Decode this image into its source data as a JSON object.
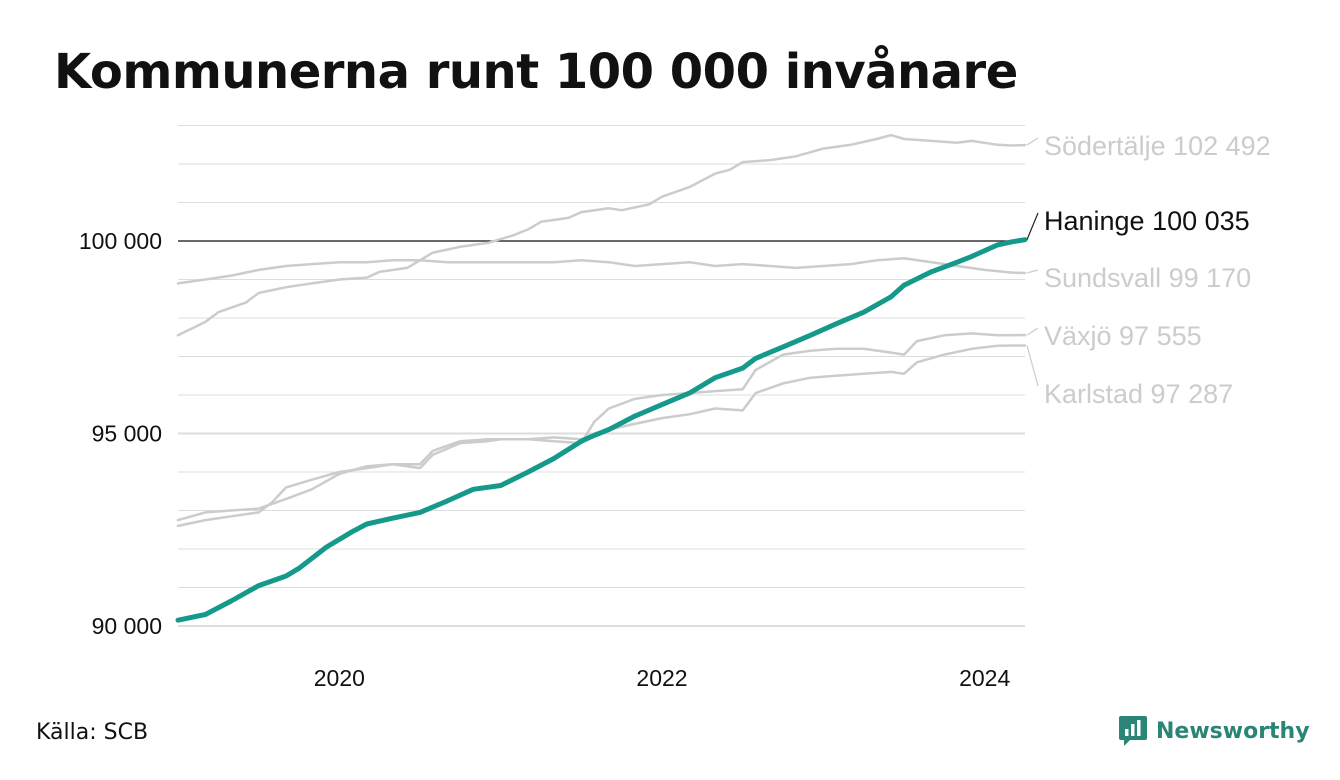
{
  "title": "Kommunerna runt 100 000 invånare",
  "source": "Källa: SCB",
  "brand": {
    "name": "Newsworthy",
    "icon": "newsworthy-logo-icon"
  },
  "colors": {
    "highlight": "#15998a",
    "context": "#cccccc",
    "reference": "#222222",
    "grid": "#dddddd",
    "brand": "#2a8577"
  },
  "chart_data": {
    "type": "line",
    "title": "Kommunerna runt 100 000 invånare",
    "xlabel": "",
    "ylabel": "",
    "xlim": [
      2019.0,
      2024.25
    ],
    "ylim": [
      89500,
      103000
    ],
    "grid": true,
    "legend": "direct labels at line ends (right)",
    "x_ticks": [
      2020,
      2022,
      2024
    ],
    "x_tick_labels": [
      "2020",
      "2022",
      "2024"
    ],
    "y_ticks": [
      90000,
      95000,
      100000
    ],
    "y_tick_labels": [
      "90 000",
      "95 000",
      "100 000"
    ],
    "reference_line": 100000,
    "series": [
      {
        "name": "Södertälje",
        "label": "Södertälje 102 492",
        "highlight": false,
        "points": [
          [
            2019.0,
            97550
          ],
          [
            2019.17,
            97900
          ],
          [
            2019.25,
            98150
          ],
          [
            2019.42,
            98400
          ],
          [
            2019.5,
            98650
          ],
          [
            2019.67,
            98800
          ],
          [
            2019.83,
            98900
          ],
          [
            2020.0,
            99000
          ],
          [
            2020.17,
            99050
          ],
          [
            2020.25,
            99200
          ],
          [
            2020.42,
            99300
          ],
          [
            2020.58,
            99700
          ],
          [
            2020.75,
            99850
          ],
          [
            2020.92,
            99950
          ],
          [
            2021.0,
            100050
          ],
          [
            2021.08,
            100150
          ],
          [
            2021.17,
            100300
          ],
          [
            2021.25,
            100500
          ],
          [
            2021.42,
            100600
          ],
          [
            2021.5,
            100750
          ],
          [
            2021.67,
            100850
          ],
          [
            2021.75,
            100800
          ],
          [
            2021.92,
            100950
          ],
          [
            2022.0,
            101150
          ],
          [
            2022.17,
            101400
          ],
          [
            2022.33,
            101750
          ],
          [
            2022.42,
            101850
          ],
          [
            2022.5,
            102050
          ],
          [
            2022.67,
            102100
          ],
          [
            2022.83,
            102200
          ],
          [
            2023.0,
            102400
          ],
          [
            2023.17,
            102500
          ],
          [
            2023.33,
            102650
          ],
          [
            2023.42,
            102750
          ],
          [
            2023.5,
            102650
          ],
          [
            2023.67,
            102600
          ],
          [
            2023.83,
            102550
          ],
          [
            2023.92,
            102600
          ],
          [
            2024.08,
            102500
          ],
          [
            2024.17,
            102480
          ],
          [
            2024.25,
            102492
          ]
        ]
      },
      {
        "name": "Haninge",
        "label": "Haninge 100 035",
        "highlight": true,
        "points": [
          [
            2019.0,
            90150
          ],
          [
            2019.17,
            90300
          ],
          [
            2019.33,
            90650
          ],
          [
            2019.5,
            91050
          ],
          [
            2019.67,
            91300
          ],
          [
            2019.75,
            91500
          ],
          [
            2019.92,
            92050
          ],
          [
            2020.08,
            92450
          ],
          [
            2020.17,
            92650
          ],
          [
            2020.33,
            92800
          ],
          [
            2020.5,
            92950
          ],
          [
            2020.67,
            93250
          ],
          [
            2020.83,
            93550
          ],
          [
            2021.0,
            93650
          ],
          [
            2021.17,
            94000
          ],
          [
            2021.33,
            94350
          ],
          [
            2021.5,
            94800
          ],
          [
            2021.58,
            94950
          ],
          [
            2021.67,
            95100
          ],
          [
            2021.83,
            95450
          ],
          [
            2022.0,
            95750
          ],
          [
            2022.17,
            96050
          ],
          [
            2022.33,
            96450
          ],
          [
            2022.5,
            96700
          ],
          [
            2022.58,
            96950
          ],
          [
            2022.75,
            97250
          ],
          [
            2022.92,
            97550
          ],
          [
            2023.08,
            97850
          ],
          [
            2023.25,
            98150
          ],
          [
            2023.42,
            98550
          ],
          [
            2023.5,
            98850
          ],
          [
            2023.67,
            99200
          ],
          [
            2023.83,
            99450
          ],
          [
            2023.92,
            99600
          ],
          [
            2024.0,
            99750
          ],
          [
            2024.08,
            99900
          ],
          [
            2024.17,
            99980
          ],
          [
            2024.25,
            100035
          ]
        ]
      },
      {
        "name": "Sundsvall",
        "label": "Sundsvall  99 170",
        "highlight": false,
        "points": [
          [
            2019.0,
            98900
          ],
          [
            2019.17,
            99000
          ],
          [
            2019.33,
            99100
          ],
          [
            2019.5,
            99250
          ],
          [
            2019.67,
            99350
          ],
          [
            2019.83,
            99400
          ],
          [
            2020.0,
            99450
          ],
          [
            2020.17,
            99450
          ],
          [
            2020.33,
            99500
          ],
          [
            2020.5,
            99500
          ],
          [
            2020.67,
            99450
          ],
          [
            2020.83,
            99450
          ],
          [
            2021.0,
            99450
          ],
          [
            2021.17,
            99450
          ],
          [
            2021.33,
            99450
          ],
          [
            2021.5,
            99500
          ],
          [
            2021.67,
            99450
          ],
          [
            2021.83,
            99350
          ],
          [
            2022.0,
            99400
          ],
          [
            2022.17,
            99450
          ],
          [
            2022.33,
            99350
          ],
          [
            2022.5,
            99400
          ],
          [
            2022.67,
            99350
          ],
          [
            2022.83,
            99300
          ],
          [
            2023.0,
            99350
          ],
          [
            2023.17,
            99400
          ],
          [
            2023.33,
            99500
          ],
          [
            2023.5,
            99550
          ],
          [
            2023.67,
            99450
          ],
          [
            2023.83,
            99350
          ],
          [
            2024.0,
            99250
          ],
          [
            2024.17,
            99180
          ],
          [
            2024.25,
            99170
          ]
        ]
      },
      {
        "name": "Växjö",
        "label": "Växjö  97 555",
        "highlight": false,
        "points": [
          [
            2019.0,
            92600
          ],
          [
            2019.17,
            92750
          ],
          [
            2019.33,
            92850
          ],
          [
            2019.5,
            92950
          ],
          [
            2019.58,
            93200
          ],
          [
            2019.67,
            93600
          ],
          [
            2019.83,
            93800
          ],
          [
            2020.0,
            94000
          ],
          [
            2020.17,
            94100
          ],
          [
            2020.33,
            94200
          ],
          [
            2020.5,
            94100
          ],
          [
            2020.58,
            94450
          ],
          [
            2020.75,
            94750
          ],
          [
            2020.92,
            94800
          ],
          [
            2021.0,
            94850
          ],
          [
            2021.17,
            94850
          ],
          [
            2021.33,
            94800
          ],
          [
            2021.5,
            94750
          ],
          [
            2021.58,
            95300
          ],
          [
            2021.67,
            95650
          ],
          [
            2021.83,
            95900
          ],
          [
            2022.0,
            96000
          ],
          [
            2022.17,
            96050
          ],
          [
            2022.33,
            96100
          ],
          [
            2022.5,
            96150
          ],
          [
            2022.58,
            96650
          ],
          [
            2022.75,
            97050
          ],
          [
            2022.92,
            97150
          ],
          [
            2023.08,
            97200
          ],
          [
            2023.25,
            97200
          ],
          [
            2023.42,
            97100
          ],
          [
            2023.5,
            97050
          ],
          [
            2023.58,
            97400
          ],
          [
            2023.75,
            97550
          ],
          [
            2023.92,
            97600
          ],
          [
            2024.08,
            97550
          ],
          [
            2024.25,
            97555
          ]
        ]
      },
      {
        "name": "Karlstad",
        "label": "Karlstad  97 287",
        "highlight": false,
        "points": [
          [
            2019.0,
            92750
          ],
          [
            2019.17,
            92950
          ],
          [
            2019.33,
            93000
          ],
          [
            2019.5,
            93050
          ],
          [
            2019.67,
            93300
          ],
          [
            2019.83,
            93550
          ],
          [
            2020.0,
            93950
          ],
          [
            2020.17,
            94150
          ],
          [
            2020.33,
            94200
          ],
          [
            2020.5,
            94200
          ],
          [
            2020.58,
            94550
          ],
          [
            2020.75,
            94800
          ],
          [
            2020.92,
            94850
          ],
          [
            2021.0,
            94850
          ],
          [
            2021.17,
            94850
          ],
          [
            2021.33,
            94900
          ],
          [
            2021.5,
            94850
          ],
          [
            2021.58,
            95000
          ],
          [
            2021.67,
            95100
          ],
          [
            2021.83,
            95250
          ],
          [
            2022.0,
            95400
          ],
          [
            2022.17,
            95500
          ],
          [
            2022.33,
            95650
          ],
          [
            2022.5,
            95600
          ],
          [
            2022.58,
            96050
          ],
          [
            2022.75,
            96300
          ],
          [
            2022.92,
            96450
          ],
          [
            2023.08,
            96500
          ],
          [
            2023.25,
            96550
          ],
          [
            2023.42,
            96600
          ],
          [
            2023.5,
            96550
          ],
          [
            2023.58,
            96850
          ],
          [
            2023.75,
            97050
          ],
          [
            2023.92,
            97200
          ],
          [
            2024.08,
            97280
          ],
          [
            2024.25,
            97287
          ]
        ]
      }
    ]
  }
}
